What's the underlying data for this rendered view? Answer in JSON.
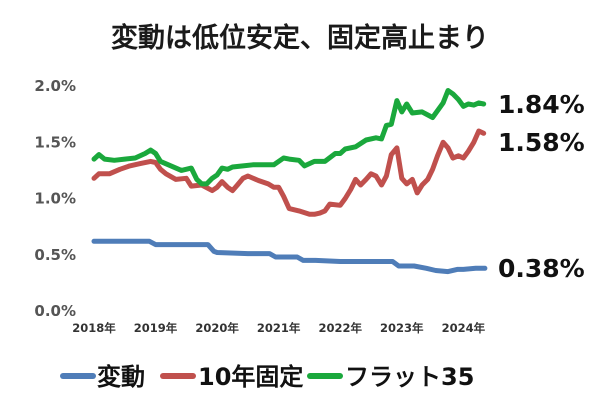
{
  "title": "変動は低位安定、固定高止まり",
  "chart_data": {
    "type": "line",
    "title": "変動は低位安定、固定高止まり",
    "xlabel": "",
    "ylabel": "",
    "ylim": [
      0,
      2.0
    ],
    "xlim": [
      2018.0,
      2024.4
    ],
    "yticks": [
      "0.0%",
      "0.5%",
      "1.0%",
      "1.5%",
      "2.0%"
    ],
    "xticks": [
      {
        "label": "2018年",
        "x": 2018.0
      },
      {
        "label": "2019年",
        "x": 2019.0
      },
      {
        "label": "2020年",
        "x": 2020.0
      },
      {
        "label": "2021年",
        "x": 2021.0
      },
      {
        "label": "2022年",
        "x": 2022.0
      },
      {
        "label": "2023年",
        "x": 2023.0
      },
      {
        "label": "2024年",
        "x": 2024.0
      }
    ],
    "grid": false,
    "legend_position": "bottom",
    "series": [
      {
        "name": "変動",
        "color": "#4f7db8",
        "end_label": "0.38%",
        "points": [
          [
            2018.0,
            0.62
          ],
          [
            2018.5,
            0.62
          ],
          [
            2018.9,
            0.62
          ],
          [
            2019.0,
            0.59
          ],
          [
            2019.5,
            0.59
          ],
          [
            2019.85,
            0.59
          ],
          [
            2019.95,
            0.53
          ],
          [
            2020.0,
            0.52
          ],
          [
            2020.5,
            0.51
          ],
          [
            2020.85,
            0.51
          ],
          [
            2020.95,
            0.48
          ],
          [
            2021.3,
            0.48
          ],
          [
            2021.4,
            0.45
          ],
          [
            2021.6,
            0.45
          ],
          [
            2022.0,
            0.44
          ],
          [
            2022.5,
            0.44
          ],
          [
            2022.85,
            0.44
          ],
          [
            2022.95,
            0.4
          ],
          [
            2023.2,
            0.4
          ],
          [
            2023.4,
            0.38
          ],
          [
            2023.55,
            0.36
          ],
          [
            2023.75,
            0.35
          ],
          [
            2023.9,
            0.37
          ],
          [
            2024.0,
            0.37
          ],
          [
            2024.2,
            0.38
          ],
          [
            2024.35,
            0.38
          ]
        ]
      },
      {
        "name": "10年固定",
        "color": "#c0504d",
        "end_label": "1.58%",
        "points": [
          [
            2018.0,
            1.18
          ],
          [
            2018.08,
            1.22
          ],
          [
            2018.25,
            1.22
          ],
          [
            2018.42,
            1.26
          ],
          [
            2018.58,
            1.29
          ],
          [
            2018.75,
            1.31
          ],
          [
            2018.92,
            1.33
          ],
          [
            2019.0,
            1.32
          ],
          [
            2019.08,
            1.26
          ],
          [
            2019.17,
            1.22
          ],
          [
            2019.33,
            1.17
          ],
          [
            2019.5,
            1.18
          ],
          [
            2019.58,
            1.11
          ],
          [
            2019.75,
            1.12
          ],
          [
            2019.92,
            1.07
          ],
          [
            2020.0,
            1.1
          ],
          [
            2020.08,
            1.15
          ],
          [
            2020.17,
            1.1
          ],
          [
            2020.25,
            1.07
          ],
          [
            2020.33,
            1.12
          ],
          [
            2020.42,
            1.18
          ],
          [
            2020.5,
            1.2
          ],
          [
            2020.67,
            1.16
          ],
          [
            2020.83,
            1.13
          ],
          [
            2020.92,
            1.1
          ],
          [
            2021.0,
            1.1
          ],
          [
            2021.08,
            1.02
          ],
          [
            2021.17,
            0.91
          ],
          [
            2021.33,
            0.89
          ],
          [
            2021.5,
            0.86
          ],
          [
            2021.58,
            0.86
          ],
          [
            2021.67,
            0.87
          ],
          [
            2021.75,
            0.89
          ],
          [
            2021.83,
            0.95
          ],
          [
            2022.0,
            0.94
          ],
          [
            2022.08,
            1.0
          ],
          [
            2022.17,
            1.08
          ],
          [
            2022.25,
            1.17
          ],
          [
            2022.33,
            1.12
          ],
          [
            2022.42,
            1.17
          ],
          [
            2022.5,
            1.22
          ],
          [
            2022.58,
            1.2
          ],
          [
            2022.67,
            1.12
          ],
          [
            2022.75,
            1.2
          ],
          [
            2022.83,
            1.39
          ],
          [
            2022.92,
            1.45
          ],
          [
            2023.0,
            1.18
          ],
          [
            2023.08,
            1.13
          ],
          [
            2023.17,
            1.17
          ],
          [
            2023.25,
            1.05
          ],
          [
            2023.33,
            1.12
          ],
          [
            2023.42,
            1.17
          ],
          [
            2023.5,
            1.26
          ],
          [
            2023.58,
            1.38
          ],
          [
            2023.67,
            1.5
          ],
          [
            2023.75,
            1.45
          ],
          [
            2023.83,
            1.36
          ],
          [
            2023.92,
            1.38
          ],
          [
            2024.0,
            1.36
          ],
          [
            2024.08,
            1.42
          ],
          [
            2024.17,
            1.5
          ],
          [
            2024.25,
            1.6
          ],
          [
            2024.33,
            1.58
          ]
        ]
      },
      {
        "name": "フラット35",
        "color": "#1aa83c",
        "end_label": "1.84%",
        "points": [
          [
            2018.0,
            1.35
          ],
          [
            2018.08,
            1.39
          ],
          [
            2018.17,
            1.35
          ],
          [
            2018.33,
            1.34
          ],
          [
            2018.5,
            1.35
          ],
          [
            2018.67,
            1.36
          ],
          [
            2018.83,
            1.4
          ],
          [
            2018.92,
            1.43
          ],
          [
            2019.0,
            1.4
          ],
          [
            2019.08,
            1.33
          ],
          [
            2019.25,
            1.29
          ],
          [
            2019.42,
            1.25
          ],
          [
            2019.58,
            1.27
          ],
          [
            2019.67,
            1.17
          ],
          [
            2019.75,
            1.13
          ],
          [
            2019.83,
            1.13
          ],
          [
            2019.92,
            1.18
          ],
          [
            2020.0,
            1.21
          ],
          [
            2020.08,
            1.27
          ],
          [
            2020.17,
            1.26
          ],
          [
            2020.25,
            1.28
          ],
          [
            2020.42,
            1.29
          ],
          [
            2020.58,
            1.3
          ],
          [
            2020.75,
            1.3
          ],
          [
            2020.92,
            1.3
          ],
          [
            2021.08,
            1.36
          ],
          [
            2021.17,
            1.35
          ],
          [
            2021.33,
            1.34
          ],
          [
            2021.42,
            1.29
          ],
          [
            2021.58,
            1.33
          ],
          [
            2021.75,
            1.33
          ],
          [
            2021.92,
            1.4
          ],
          [
            2022.0,
            1.4
          ],
          [
            2022.08,
            1.44
          ],
          [
            2022.25,
            1.46
          ],
          [
            2022.42,
            1.52
          ],
          [
            2022.58,
            1.54
          ],
          [
            2022.67,
            1.53
          ],
          [
            2022.75,
            1.65
          ],
          [
            2022.83,
            1.66
          ],
          [
            2022.92,
            1.87
          ],
          [
            2023.0,
            1.77
          ],
          [
            2023.08,
            1.84
          ],
          [
            2023.17,
            1.76
          ],
          [
            2023.33,
            1.77
          ],
          [
            2023.5,
            1.72
          ],
          [
            2023.67,
            1.85
          ],
          [
            2023.75,
            1.96
          ],
          [
            2023.83,
            1.93
          ],
          [
            2023.92,
            1.88
          ],
          [
            2024.0,
            1.82
          ],
          [
            2024.08,
            1.84
          ],
          [
            2024.17,
            1.83
          ],
          [
            2024.25,
            1.85
          ],
          [
            2024.33,
            1.84
          ]
        ]
      }
    ]
  }
}
